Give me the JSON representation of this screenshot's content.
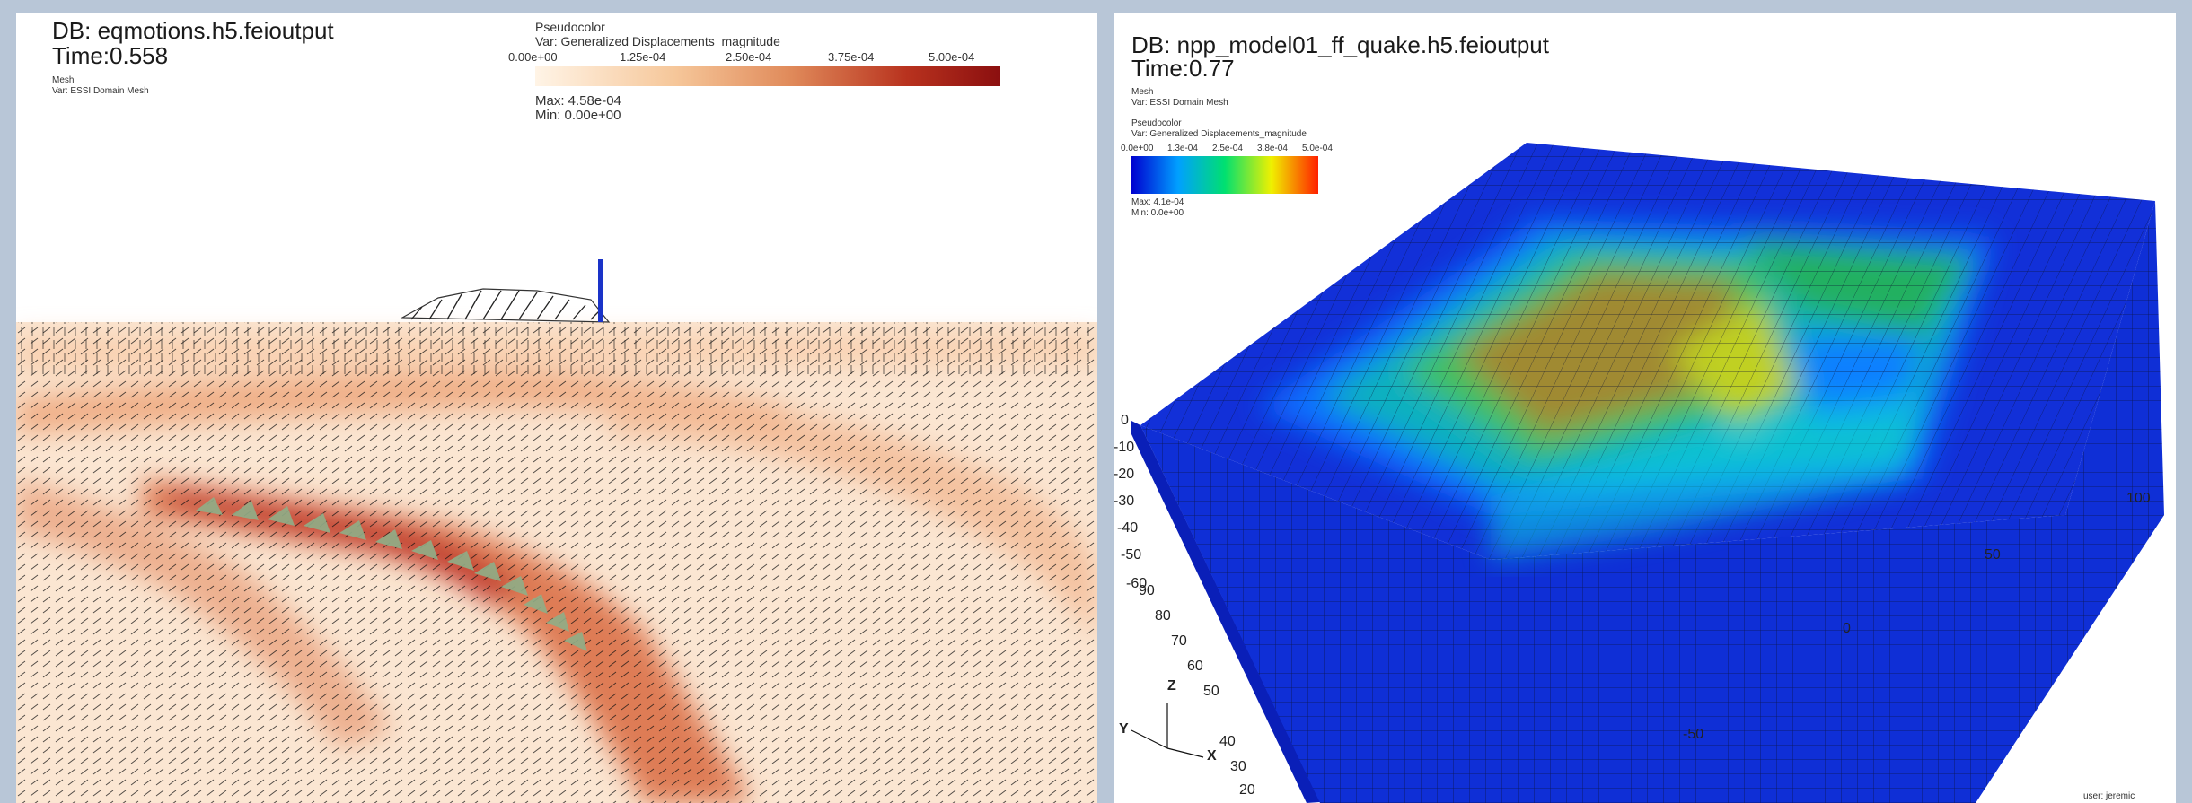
{
  "left": {
    "db": "DB: eqmotions.h5.feioutput",
    "time": "Time:0.558",
    "mesh_label": "Mesh",
    "mesh_var": "Var: ESSI Domain Mesh",
    "legend": {
      "title": "Pseudocolor",
      "var": "Var: Generalized Displacements_magnitude",
      "ticks": [
        "0.00e+00",
        "1.25e-04",
        "2.50e-04",
        "3.75e-04",
        "5.00e-04"
      ],
      "max": "Max:  4.58e-04",
      "min": "Min:  0.00e+00",
      "colors": [
        "#fff4e6",
        "#f6c79a",
        "#e08a5a",
        "#b8321e",
        "#8b0f0f"
      ]
    }
  },
  "right": {
    "db": "DB: npp_model01_ff_quake.h5.feioutput",
    "time": "Time:0.77",
    "mesh_label": "Mesh",
    "mesh_var": "Var: ESSI Domain Mesh",
    "legend": {
      "title": "Pseudocolor",
      "var": "Var: Generalized Displacements_magnitude",
      "ticks": [
        "0.0e+00",
        "1.3e-04",
        "2.5e-04",
        "3.8e-04",
        "5.0e-04"
      ],
      "max": "Max: 4.1e-04",
      "min": "Min:  0.0e+00",
      "colors": [
        "#0000d0",
        "#00a0ff",
        "#00e070",
        "#f0f000",
        "#ff2000"
      ]
    },
    "z_axis_labels": [
      "0",
      "-10",
      "-20",
      "-30",
      "-40",
      "-50",
      "-60"
    ],
    "x_axis_labels": [
      "90",
      "80",
      "70",
      "60",
      "50",
      "40",
      "30",
      "20"
    ],
    "depth_axis_labels": [
      "100",
      "50",
      "0",
      "-50"
    ],
    "triad": {
      "z": "Z",
      "y": "Y",
      "x": "X"
    },
    "corner_text": "user: jeremic"
  }
}
